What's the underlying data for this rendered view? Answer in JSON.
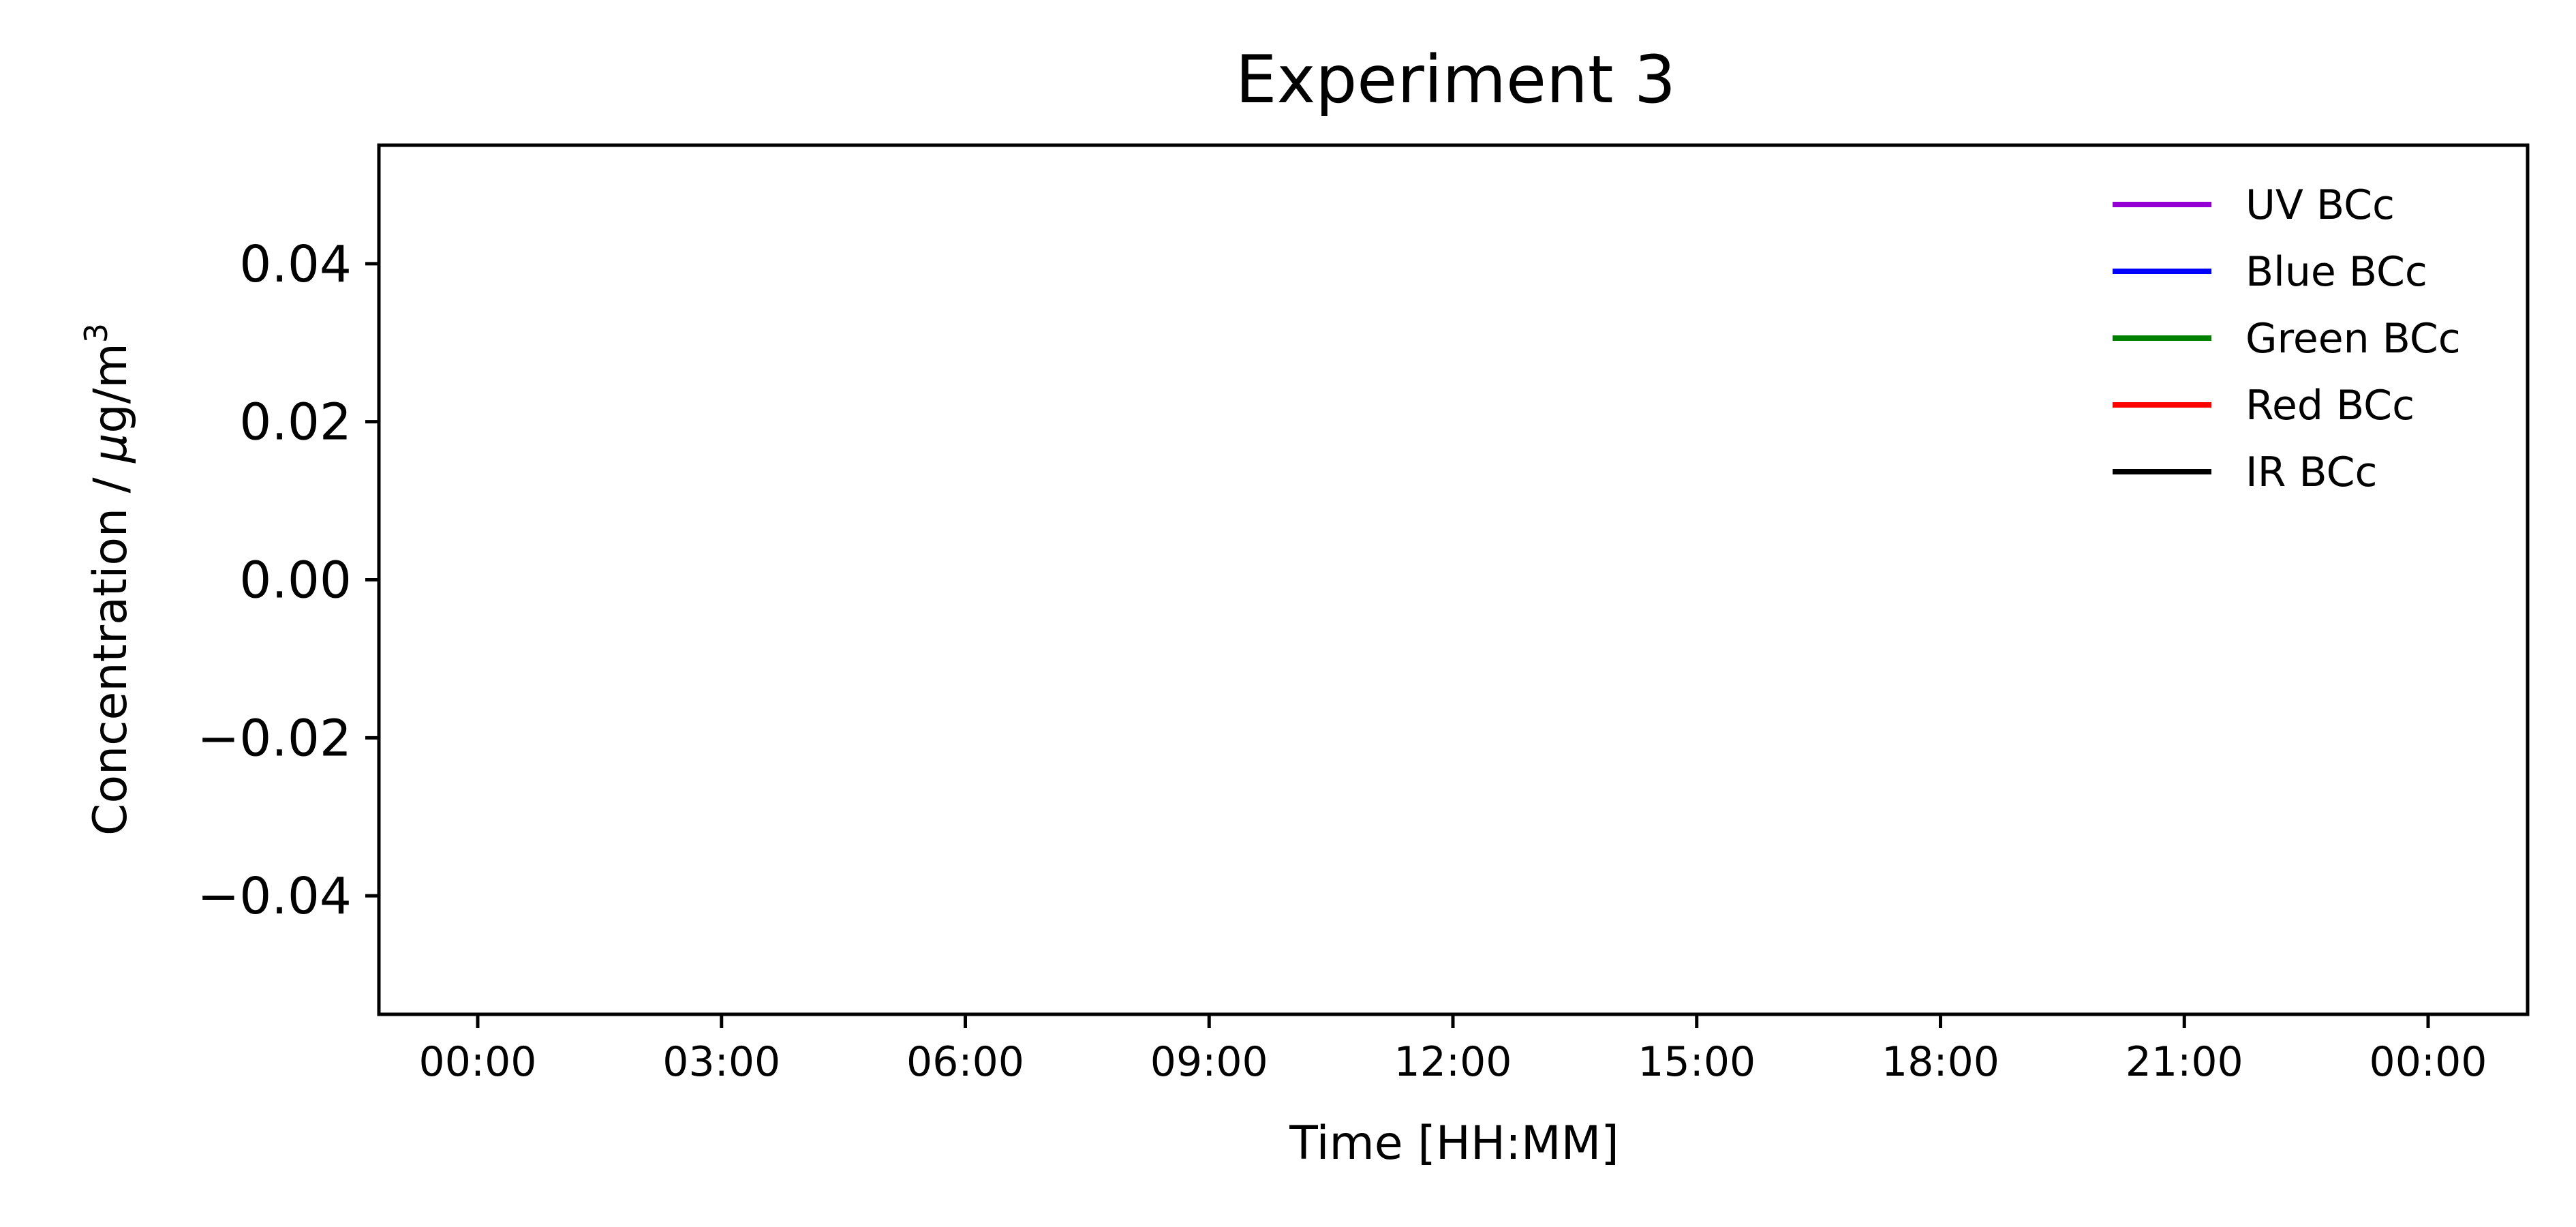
{
  "chart_data": {
    "type": "line",
    "title": "Experiment 3",
    "xlabel": "Time [HH:MM]",
    "ylabel_main": "Concentration / ",
    "ylabel_mu": "μ",
    "ylabel_unit": "g/m",
    "ylabel_sup": "3",
    "x_tick_labels": [
      "00:00",
      "03:00",
      "06:00",
      "09:00",
      "12:00",
      "15:00",
      "18:00",
      "21:00",
      "00:00"
    ],
    "y_tick_labels": [
      "0.04",
      "0.02",
      "0.00",
      "−0.02",
      "−0.04"
    ],
    "y_ticks": [
      0.04,
      0.02,
      0.0,
      -0.02,
      -0.04
    ],
    "ylim": [
      -0.055,
      0.055
    ],
    "grid": false,
    "legend_position": "top-right",
    "series": [
      {
        "name": "UV BCc",
        "color": "#9400d3",
        "values": []
      },
      {
        "name": "Blue BCc",
        "color": "#0000ff",
        "values": []
      },
      {
        "name": "Green BCc",
        "color": "#008000",
        "values": []
      },
      {
        "name": "Red BCc",
        "color": "#ff0000",
        "values": []
      },
      {
        "name": "IR BCc",
        "color": "#000000",
        "values": []
      }
    ]
  }
}
